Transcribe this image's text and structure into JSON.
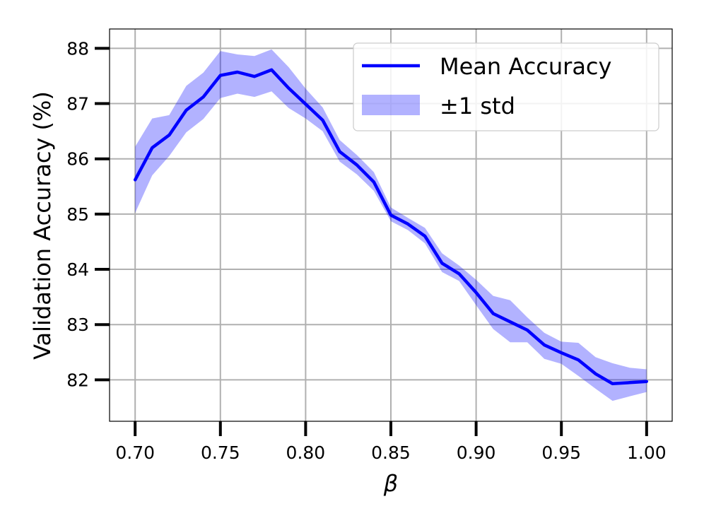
{
  "chart_data": {
    "type": "line",
    "xlabel": "β",
    "ylabel": "Validation Accuracy (%)",
    "xlim": [
      0.685,
      1.015
    ],
    "ylim": [
      81.25,
      88.35
    ],
    "x_ticks": [
      "0.70",
      "0.75",
      "0.80",
      "0.85",
      "0.90",
      "0.95",
      "1.00"
    ],
    "y_ticks": [
      "82",
      "83",
      "84",
      "85",
      "86",
      "87",
      "88"
    ],
    "grid": true,
    "legend_position": "top-right",
    "x": [
      0.7,
      0.71,
      0.72,
      0.73,
      0.74,
      0.75,
      0.76,
      0.77,
      0.78,
      0.79,
      0.8,
      0.81,
      0.82,
      0.83,
      0.84,
      0.85,
      0.86,
      0.87,
      0.88,
      0.89,
      0.9,
      0.91,
      0.92,
      0.93,
      0.94,
      0.95,
      0.96,
      0.97,
      0.98,
      0.99,
      1.0
    ],
    "series": [
      {
        "name": "Mean Accuracy",
        "color": "#0000ff",
        "values": [
          85.62,
          86.2,
          86.43,
          86.88,
          87.12,
          87.51,
          87.57,
          87.49,
          87.61,
          87.28,
          86.99,
          86.7,
          86.13,
          85.89,
          85.58,
          84.98,
          84.82,
          84.6,
          84.11,
          83.92,
          83.58,
          83.2,
          83.05,
          82.9,
          82.63,
          82.49,
          82.36,
          82.11,
          81.93,
          81.95,
          81.97
        ]
      },
      {
        "name": "±1 std",
        "color": "#0000ff",
        "opacity": 0.3,
        "lower": [
          85.02,
          85.7,
          86.05,
          86.48,
          86.72,
          87.1,
          87.18,
          87.12,
          87.22,
          86.92,
          86.73,
          86.5,
          85.95,
          85.72,
          85.42,
          84.87,
          84.71,
          84.47,
          83.95,
          83.79,
          83.35,
          82.92,
          82.68,
          82.68,
          82.38,
          82.29,
          82.07,
          81.84,
          81.62,
          81.7,
          81.78
        ],
        "upper": [
          86.22,
          86.73,
          86.79,
          87.32,
          87.56,
          87.95,
          87.89,
          87.86,
          87.98,
          87.66,
          87.27,
          86.93,
          86.34,
          86.07,
          85.76,
          85.12,
          84.93,
          84.75,
          84.29,
          84.07,
          83.81,
          83.52,
          83.44,
          83.13,
          82.85,
          82.69,
          82.67,
          82.41,
          82.3,
          82.22,
          82.19
        ]
      }
    ]
  }
}
